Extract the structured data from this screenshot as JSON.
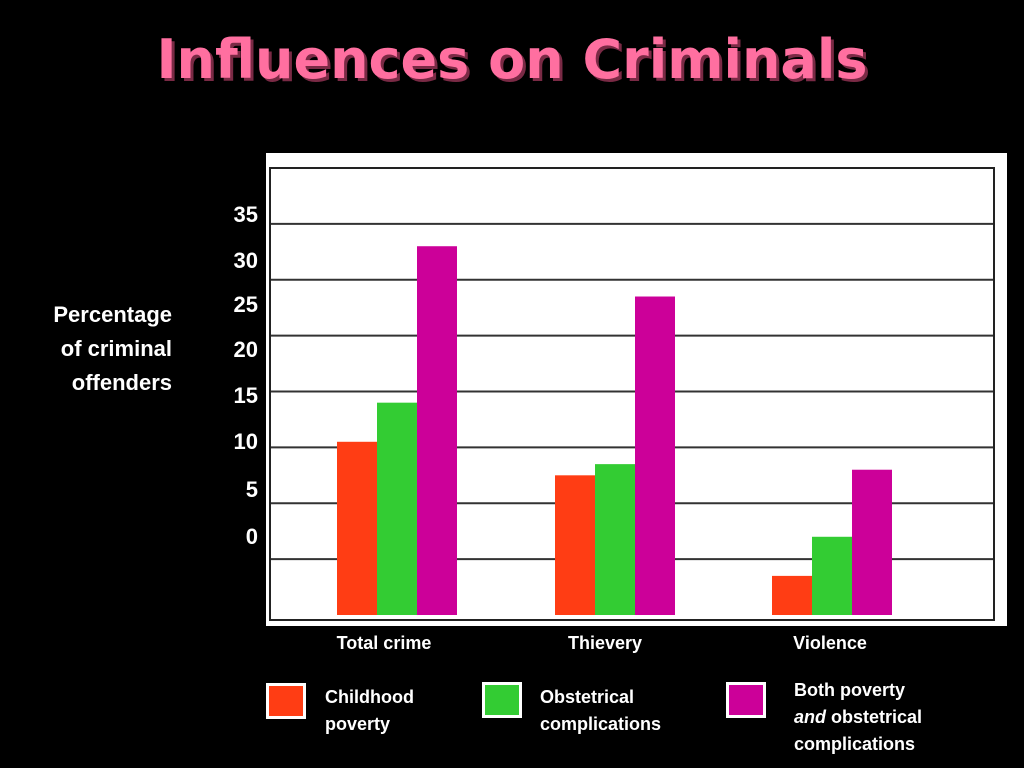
{
  "title": "Influences on Criminals",
  "chart_data": {
    "type": "bar",
    "ylabel_lines": [
      "Percentage",
      "of criminal",
      "offenders"
    ],
    "yticks": [
      "35",
      "30",
      "25",
      "20",
      "15",
      "10",
      "5",
      "0"
    ],
    "ylim": [
      0,
      40
    ],
    "categories": [
      "Total crime",
      "Thievery",
      "Violence"
    ],
    "series": [
      {
        "name": "Childhood poverty",
        "color": "#ff3d14",
        "values": [
          15.5,
          12.5,
          3.5
        ]
      },
      {
        "name": "Obstetrical complications",
        "color": "#33cc33",
        "values": [
          19,
          13.5,
          7
        ]
      },
      {
        "name": "Both poverty and obstetrical complications",
        "color": "#cc0099",
        "values": [
          33,
          28.5,
          13
        ]
      }
    ],
    "grid": true,
    "legend_position": "bottom"
  },
  "legend": [
    {
      "line1": "Childhood",
      "line2": "poverty"
    },
    {
      "line1": "Obstetrical",
      "line2": "complications"
    },
    {
      "line1": "Both poverty",
      "line2_em": "and",
      "line2_rest": " obstetrical",
      "line3": "complications"
    }
  ]
}
